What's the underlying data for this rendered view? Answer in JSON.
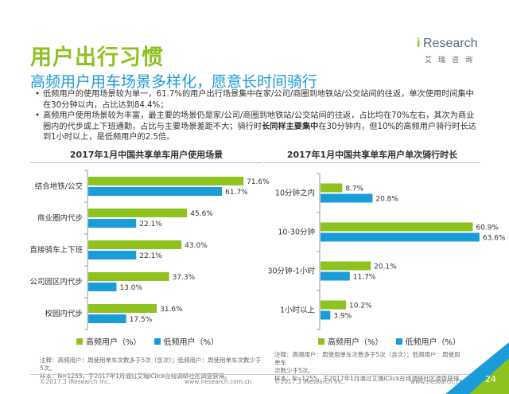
{
  "header": {
    "title": "用户出行习惯",
    "subtitle": "高频用户用车场景多样化，愿意长时间骑行"
  },
  "logo": {
    "brand_i": "i",
    "brand_main": "Research",
    "brand_sub": "艾瑞咨询"
  },
  "bullets": [
    {
      "text": "低频用户的使用场景较为单一，61.7%的用户出行场景集中在家/公司/商圈到地铁站/公交站间的往返，单次使用时间集中在30分钟以内，占比达到84.4%；"
    },
    {
      "text_before": "高频用户使用场景较为丰富，最主要的场景仍是家/公司/商圈到地铁站/公交站间的往返，占比均在70%左右，其次为商业圈内的代步或上下班通勤，占比与主要场景差距不大；骑行时",
      "text_highlight": "长同样主要集中",
      "text_after": "在30分钟内，但10%的高频用户骑行时长达到1小时以上，是低频用户的2.5倍。"
    }
  ],
  "colors": {
    "high_freq": "#8dc21f",
    "low_freq": "#1a9cd8",
    "title_green": "#8dc21f",
    "subtitle_blue": "#1a9cd8"
  },
  "chart_data": [
    {
      "type": "bar",
      "orientation": "horizontal",
      "title": "2017年1月中国共享单车用户使用场景",
      "categories": [
        "结合地铁/公交",
        "商业圈内代步",
        "直接骑车上下班",
        "公司园区内代步",
        "校园内代步"
      ],
      "series": [
        {
          "name": "高频用户（%）",
          "values": [
            71.6,
            45.6,
            43.0,
            37.3,
            31.6
          ],
          "labels": [
            "71.6%",
            "45.6%",
            "43.0%",
            "37.3%",
            "31.6%"
          ]
        },
        {
          "name": "低频用户（%）",
          "values": [
            61.7,
            22.1,
            22.1,
            13.0,
            17.5
          ],
          "labels": [
            "61.7%",
            "22.1%",
            "22.1%",
            "13.0%",
            "17.5%"
          ]
        }
      ],
      "xlim": [
        0,
        80
      ],
      "legend_position": "bottom"
    },
    {
      "type": "bar",
      "orientation": "horizontal",
      "title": "2017年1月中国共享单车用户单次骑行时长",
      "categories": [
        "10分钟之内",
        "10-30分钟",
        "30分钟-1小时",
        "1小时以上"
      ],
      "series": [
        {
          "name": "高频用户（%）",
          "values": [
            8.7,
            60.9,
            20.1,
            10.2
          ],
          "labels": [
            "8.7%",
            "60.9%",
            "20.1%",
            "10.2%"
          ]
        },
        {
          "name": "低频用户（%）",
          "values": [
            20.8,
            63.6,
            11.7,
            3.9
          ],
          "labels": [
            "20.8%",
            "63.6%",
            "11.7%",
            "3.9%"
          ]
        }
      ],
      "xlim": [
        0,
        70
      ],
      "legend_position": "bottom"
    }
  ],
  "legend": {
    "high_label": "高频用户（%）",
    "low_label": "低频用户（%）"
  },
  "notes": {
    "left_line1": "注释：高频用户：周使用单车次数多于5次（含次）；低频用户：周使用单车次数少于5次。",
    "left_line2": "样本：N=1255，于2017年1月通过艾瑞iClick在线调研社区调查获得。",
    "right_line1": "注释：高频用户：周使用单车次数多于5次（含次）；低频用户：周使用单车",
    "right_line2": "次数少于5次。",
    "right_line3": "样本：N=1255，于2017年1月通过艾瑞iClick在线调研社区调查获得。"
  },
  "footer": {
    "copyright": "©2017.3 iResearch Inc.",
    "website": "www.iresearch.com.cn",
    "page": "24"
  }
}
